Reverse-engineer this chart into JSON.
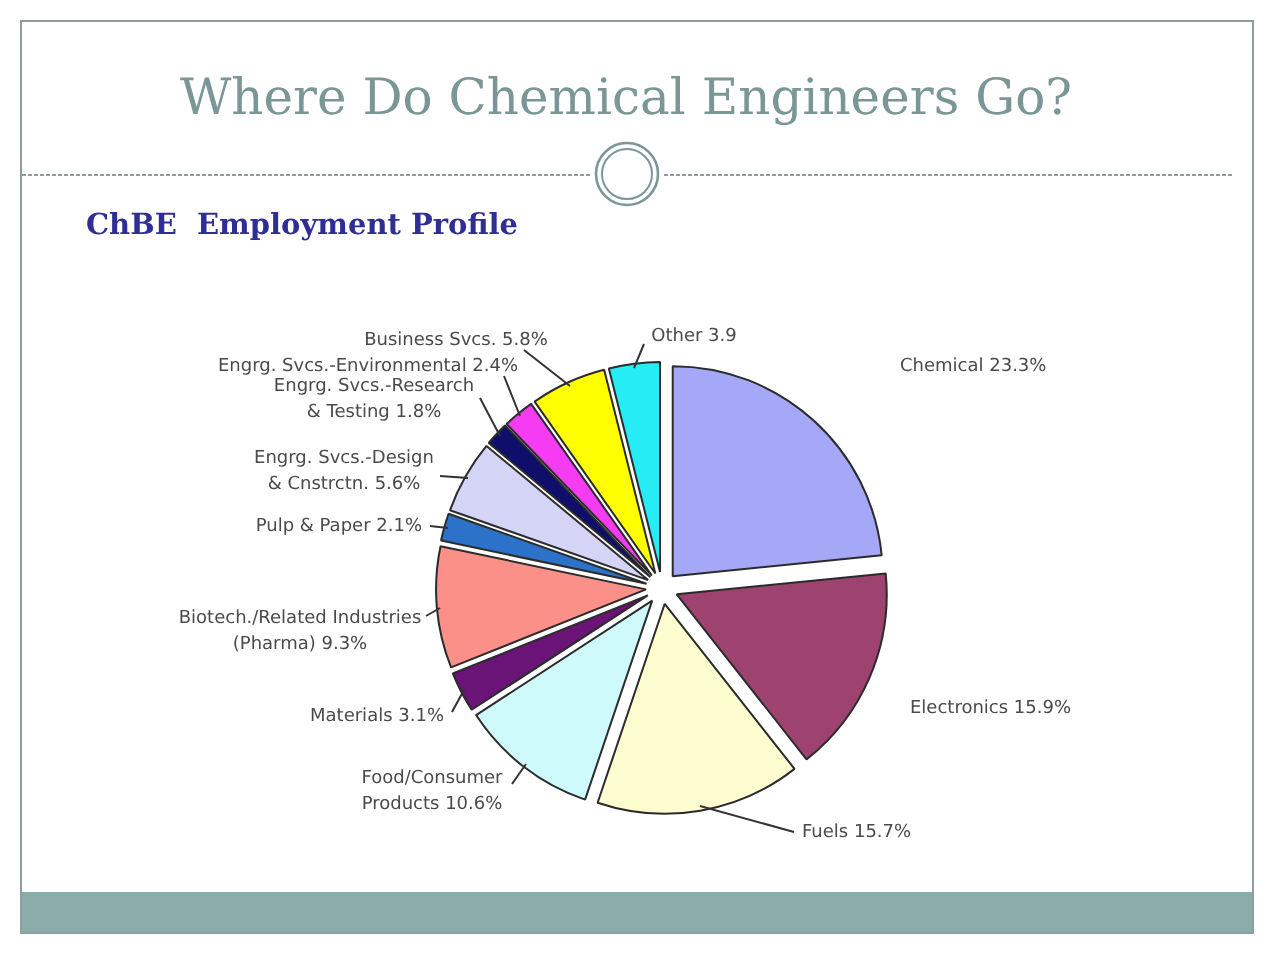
{
  "chart_data": {
    "type": "pie",
    "title": "Where Do Chemical Engineers Go?",
    "subtitle": "ChBE  Employment Profile",
    "categories": [
      "Chemical",
      "Electronics",
      "Fuels",
      "Food/Consumer Products",
      "Materials",
      "Biotech./Related Industries (Pharma)",
      "Pulp & Paper",
      "Engrg. Svcs.-Design & Cnstrctn.",
      "Engrg. Svcs.-Research & Testing",
      "Engrg. Svcs.-Environmental",
      "Business Svcs.",
      "Other"
    ],
    "values": [
      23.3,
      15.9,
      15.7,
      10.6,
      3.1,
      9.3,
      2.1,
      5.6,
      1.8,
      2.4,
      5.8,
      3.9
    ],
    "colors": [
      "#a4a8f6",
      "#9e4270",
      "#fefdd0",
      "#cffafb",
      "#6a1477",
      "#fa9088",
      "#2c72c8",
      "#d4d4f7",
      "#0f0f6b",
      "#f53cf2",
      "#ffff00",
      "#25ecf5"
    ],
    "value_labels": [
      "23.3%",
      "15.9%",
      "15.7%",
      "10.6%",
      "3.1%",
      "9.3%",
      "2.1%",
      "5.6%",
      "1.8%",
      "2.4%",
      "5.8%",
      "3.9"
    ]
  }
}
